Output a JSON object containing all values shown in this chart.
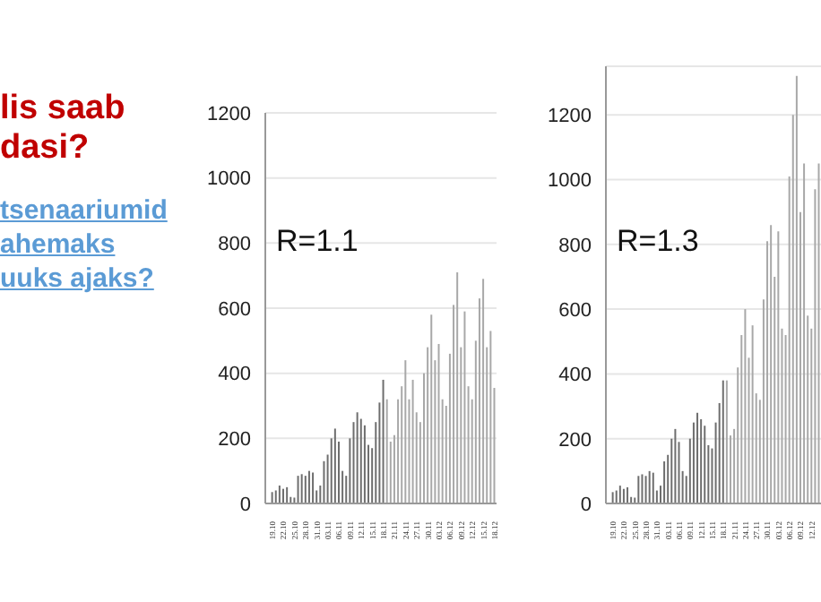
{
  "chart_data": [
    {
      "type": "other",
      "title": "lis saab dasi?",
      "annotations": [
        "tsenaariumid",
        "ahemaks",
        "uuks ajaks?"
      ]
    },
    {
      "type": "bar",
      "annotations": [
        {
          "text": "R=1.1"
        }
      ],
      "categories": [
        "19.10",
        null,
        null,
        "22.10",
        null,
        null,
        "25.10",
        null,
        null,
        "28.10",
        null,
        null,
        "31.10",
        null,
        null,
        "03.11",
        null,
        null,
        "06.11",
        null,
        null,
        "09.11",
        null,
        null,
        "12.11",
        null,
        null,
        "15.11",
        null,
        null,
        "18.11",
        null,
        null,
        "21.11",
        null,
        null,
        "24.11",
        null,
        null,
        "27.11",
        null,
        null,
        "30.11",
        null,
        null,
        "03.12",
        null,
        null,
        "06.12",
        null,
        null,
        "09.12",
        null,
        null,
        "12.12",
        null,
        null,
        "15.12",
        null,
        null,
        "18.12"
      ],
      "values": [
        35,
        40,
        55,
        45,
        50,
        20,
        18,
        85,
        90,
        85,
        100,
        95,
        40,
        55,
        130,
        150,
        200,
        230,
        190,
        100,
        85,
        200,
        250,
        280,
        260,
        240,
        180,
        170,
        250,
        310,
        380,
        320,
        190,
        210,
        320,
        360,
        440,
        320,
        380,
        280,
        250,
        400,
        480,
        580,
        440,
        490,
        320,
        300,
        460,
        610,
        710,
        480,
        590,
        360,
        320,
        500,
        630,
        690,
        480,
        530,
        355
      ],
      "colors": [
        "#6e6e6e",
        "#6e6e6e",
        "#6e6e6e",
        "#6e6e6e",
        "#6e6e6e",
        "#6e6e6e",
        "#6e6e6e",
        "#6e6e6e",
        "#6e6e6e",
        "#6e6e6e",
        "#6e6e6e",
        "#6e6e6e",
        "#6e6e6e",
        "#6e6e6e",
        "#6e6e6e",
        "#6e6e6e",
        "#6e6e6e",
        "#6e6e6e",
        "#6e6e6e",
        "#6e6e6e",
        "#6e6e6e",
        "#6e6e6e",
        "#6e6e6e",
        "#6e6e6e",
        "#6e6e6e",
        "#6e6e6e",
        "#6e6e6e",
        "#6e6e6e",
        "#6e6e6e",
        "#6e6e6e",
        "#6e6e6e",
        "#a8a8a8",
        "#a8a8a8",
        "#a8a8a8",
        "#a8a8a8",
        "#a8a8a8",
        "#a8a8a8",
        "#a8a8a8",
        "#a8a8a8",
        "#a8a8a8",
        "#a8a8a8",
        "#a8a8a8",
        "#a8a8a8",
        "#a8a8a8",
        "#a8a8a8",
        "#a8a8a8",
        "#a8a8a8",
        "#a8a8a8",
        "#a8a8a8",
        "#a8a8a8",
        "#a8a8a8",
        "#a8a8a8",
        "#a8a8a8",
        "#a8a8a8",
        "#a8a8a8",
        "#a8a8a8",
        "#a8a8a8",
        "#a8a8a8",
        "#a8a8a8",
        "#a8a8a8",
        "#a8a8a8"
      ],
      "ylim": [
        0,
        1200
      ],
      "yticks": [
        0,
        200,
        400,
        600,
        800,
        1000,
        1200
      ],
      "grid": "y"
    },
    {
      "type": "bar",
      "annotations": [
        {
          "text": "R=1.3"
        }
      ],
      "categories": [
        "19.10",
        null,
        null,
        "22.10",
        null,
        null,
        "25.10",
        null,
        null,
        "28.10",
        null,
        null,
        "31.10",
        null,
        null,
        "03.11",
        null,
        null,
        "06.11",
        null,
        null,
        "09.11",
        null,
        null,
        "12.11",
        null,
        null,
        "15.11",
        null,
        null,
        "18.11",
        null,
        null,
        "21.11",
        null,
        null,
        "24.11",
        null,
        null,
        "27.11",
        null,
        null,
        "30.11",
        null,
        null,
        "03.12",
        null,
        null,
        "06.12",
        null,
        null,
        "09.12",
        null,
        null,
        "12.12",
        null,
        null
      ],
      "values": [
        35,
        40,
        55,
        45,
        50,
        20,
        18,
        85,
        90,
        85,
        100,
        95,
        40,
        55,
        130,
        150,
        200,
        230,
        190,
        100,
        85,
        200,
        250,
        280,
        260,
        240,
        180,
        170,
        250,
        310,
        380,
        380,
        210,
        230,
        420,
        520,
        600,
        450,
        550,
        340,
        320,
        630,
        810,
        860,
        700,
        840,
        540,
        520,
        1010,
        1200,
        1320,
        900,
        1050,
        580,
        540,
        970,
        1050
      ],
      "colors": [
        "#6e6e6e",
        "#6e6e6e",
        "#6e6e6e",
        "#6e6e6e",
        "#6e6e6e",
        "#6e6e6e",
        "#6e6e6e",
        "#6e6e6e",
        "#6e6e6e",
        "#6e6e6e",
        "#6e6e6e",
        "#6e6e6e",
        "#6e6e6e",
        "#6e6e6e",
        "#6e6e6e",
        "#6e6e6e",
        "#6e6e6e",
        "#6e6e6e",
        "#6e6e6e",
        "#6e6e6e",
        "#6e6e6e",
        "#6e6e6e",
        "#6e6e6e",
        "#6e6e6e",
        "#6e6e6e",
        "#6e6e6e",
        "#6e6e6e",
        "#6e6e6e",
        "#6e6e6e",
        "#6e6e6e",
        "#6e6e6e",
        "#a8a8a8",
        "#a8a8a8",
        "#a8a8a8",
        "#a8a8a8",
        "#a8a8a8",
        "#a8a8a8",
        "#a8a8a8",
        "#a8a8a8",
        "#a8a8a8",
        "#a8a8a8",
        "#a8a8a8",
        "#a8a8a8",
        "#a8a8a8",
        "#a8a8a8",
        "#a8a8a8",
        "#a8a8a8",
        "#a8a8a8",
        "#a8a8a8",
        "#a8a8a8",
        "#a8a8a8",
        "#a8a8a8",
        "#a8a8a8",
        "#a8a8a8",
        "#a8a8a8",
        "#a8a8a8",
        "#a8a8a8"
      ],
      "ylim": [
        0,
        1350
      ],
      "yticks": [
        0,
        200,
        400,
        600,
        800,
        1000,
        1200
      ],
      "grid": "y"
    }
  ]
}
